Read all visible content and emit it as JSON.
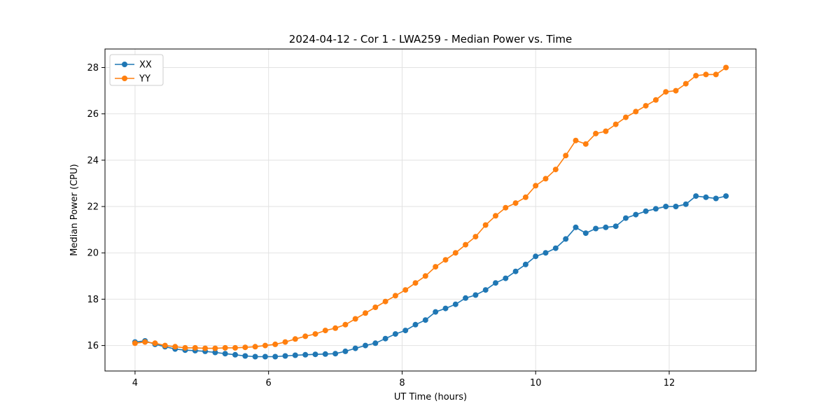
{
  "chart_data": {
    "type": "line",
    "title": "2024-04-12 - Cor 1 - LWA259 - Median Power vs. Time",
    "xlabel": "UT Time (hours)",
    "ylabel": "Median Power (CPU)",
    "xlim": [
      3.55,
      13.3
    ],
    "ylim": [
      14.9,
      28.8
    ],
    "xticks": [
      4,
      6,
      8,
      10,
      12
    ],
    "yticks": [
      16,
      18,
      20,
      22,
      24,
      26,
      28
    ],
    "grid": true,
    "legend_position": "upper-left",
    "marker": "circle",
    "x": [
      4.0,
      4.15,
      4.3,
      4.45,
      4.6,
      4.75,
      4.9,
      5.05,
      5.2,
      5.35,
      5.5,
      5.65,
      5.8,
      5.95,
      6.1,
      6.25,
      6.4,
      6.55,
      6.7,
      6.85,
      7.0,
      7.15,
      7.3,
      7.45,
      7.6,
      7.75,
      7.9,
      8.05,
      8.2,
      8.35,
      8.5,
      8.65,
      8.8,
      8.95,
      9.1,
      9.25,
      9.4,
      9.55,
      9.7,
      9.85,
      10.0,
      10.15,
      10.3,
      10.45,
      10.6,
      10.75,
      10.9,
      11.05,
      11.2,
      11.35,
      11.5,
      11.65,
      11.8,
      11.95,
      12.1,
      12.25,
      12.4,
      12.55,
      12.7,
      12.85
    ],
    "series": [
      {
        "name": "XX",
        "color": "#1f77b4",
        "values": [
          16.15,
          16.2,
          16.05,
          15.95,
          15.85,
          15.8,
          15.78,
          15.75,
          15.7,
          15.65,
          15.6,
          15.55,
          15.52,
          15.52,
          15.52,
          15.55,
          15.58,
          15.6,
          15.62,
          15.63,
          15.65,
          15.75,
          15.88,
          16.0,
          16.1,
          16.3,
          16.5,
          16.65,
          16.9,
          17.1,
          17.45,
          17.6,
          17.78,
          18.05,
          18.18,
          18.4,
          18.7,
          18.9,
          19.2,
          19.5,
          19.85,
          20.0,
          20.2,
          20.6,
          21.1,
          20.85,
          21.05,
          21.1,
          21.15,
          21.5,
          21.65,
          21.8,
          21.9,
          22.0,
          22.0,
          22.1,
          22.45,
          22.4,
          22.35,
          22.45
        ]
      },
      {
        "name": "YY",
        "color": "#ff7f0e",
        "values": [
          16.1,
          16.15,
          16.1,
          16.0,
          15.95,
          15.9,
          15.9,
          15.88,
          15.88,
          15.9,
          15.9,
          15.92,
          15.95,
          16.0,
          16.05,
          16.15,
          16.28,
          16.4,
          16.5,
          16.65,
          16.75,
          16.9,
          17.15,
          17.4,
          17.65,
          17.9,
          18.15,
          18.4,
          18.7,
          19.0,
          19.4,
          19.7,
          20.0,
          20.35,
          20.7,
          21.2,
          21.6,
          21.95,
          22.15,
          22.4,
          22.9,
          23.2,
          23.6,
          24.2,
          24.85,
          24.7,
          25.15,
          25.25,
          25.55,
          25.85,
          26.1,
          26.35,
          26.6,
          26.95,
          27.0,
          27.3,
          27.65,
          27.7,
          27.7,
          28.0
        ]
      }
    ]
  }
}
